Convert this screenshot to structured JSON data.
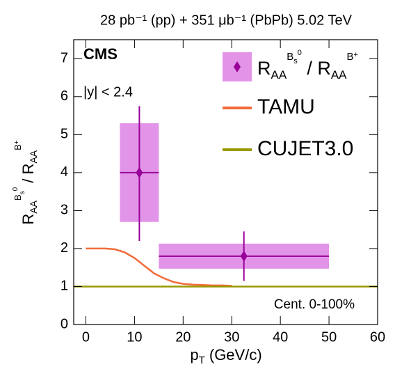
{
  "chart_data": {
    "type": "line",
    "title": "28 pb⁻¹ (pp) + 351 μb⁻¹ (PbPb) 5.02 TeV",
    "x_label": [
      "p",
      "T",
      " (GeV/c)"
    ],
    "y_label": [
      "R",
      "AA",
      "B",
      "s",
      "0",
      " / R",
      "AA",
      "B",
      "+"
    ],
    "annotations": [
      "CMS",
      "|y| < 2.4",
      "Cent. 0-100%"
    ],
    "xlim": [
      -2.5,
      60
    ],
    "ylim": [
      0,
      7.5
    ],
    "xticks": [
      0,
      10,
      20,
      30,
      40,
      50,
      60
    ],
    "yticks": [
      0,
      1,
      2,
      3,
      4,
      5,
      6,
      7
    ],
    "data_points": {
      "name": [
        "R",
        "AA",
        "B",
        "s",
        "0",
        " / R",
        "AA",
        "B",
        "+"
      ],
      "color": "#990099",
      "box_color": "#e294e8",
      "x": [
        11,
        32.5
      ],
      "x_low": [
        7,
        15
      ],
      "x_high": [
        15,
        50
      ],
      "values": [
        4.0,
        1.8
      ],
      "stat_low": [
        1.8,
        0.65
      ],
      "stat_high": [
        1.75,
        0.65
      ],
      "syst_low": [
        1.3,
        0.33
      ],
      "syst_high": [
        1.3,
        0.33
      ]
    },
    "series": [
      {
        "name": "TAMU",
        "color": "#f26b3a",
        "x": [
          0,
          2,
          4,
          6,
          8,
          10,
          12,
          14,
          16,
          18,
          20,
          22,
          24,
          26,
          28,
          30
        ],
        "values": [
          2.0,
          2.0,
          2.0,
          1.98,
          1.9,
          1.75,
          1.55,
          1.35,
          1.22,
          1.12,
          1.07,
          1.05,
          1.04,
          1.03,
          1.03,
          1.02
        ]
      },
      {
        "name": "CUJET3.0",
        "color": "#999900",
        "x": [
          -2.5,
          60
        ],
        "values": [
          1,
          1
        ]
      }
    ]
  }
}
